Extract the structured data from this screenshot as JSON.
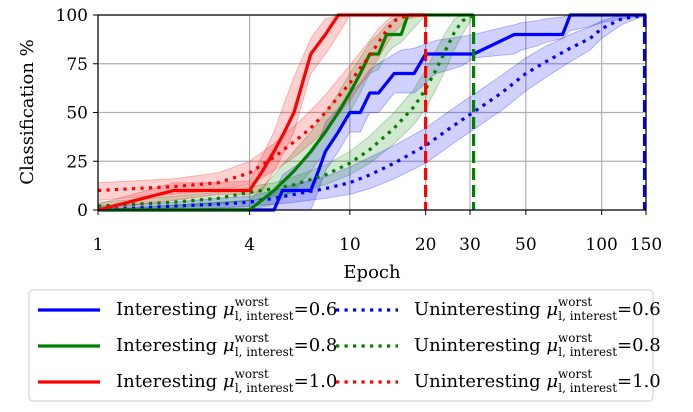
{
  "chart_data": {
    "type": "line",
    "xlabel": "Epoch",
    "ylabel": "Classification %",
    "xscale": "log",
    "xlim": [
      1,
      150
    ],
    "ylim": [
      0,
      100
    ],
    "grid": true,
    "legend_position": "below",
    "x_ticks": [
      1,
      4,
      10,
      20,
      30,
      50,
      100,
      150
    ],
    "x_tick_labels": [
      "1",
      "4",
      "10",
      "20",
      "30",
      "50",
      "100",
      "150"
    ],
    "y_ticks": [
      0,
      25,
      50,
      75,
      100
    ],
    "y_tick_labels": [
      "0",
      "25",
      "50",
      "75",
      "100"
    ],
    "colors": {
      "blue": "#0000ff",
      "green": "#008000",
      "red": "#ff0000"
    },
    "series": [
      {
        "name": "Interesting μ^worst_l,interest = 0.6",
        "legend_main": "Interesting",
        "legend_value": "0.6",
        "color": "blue",
        "style": "solid",
        "x": [
          1,
          4.2,
          5,
          5.4,
          6,
          6.5,
          7,
          7.5,
          8,
          9,
          10,
          11,
          12,
          13,
          15,
          16,
          18,
          20,
          21,
          22,
          25,
          28,
          31,
          45,
          48,
          55,
          60,
          70,
          75,
          90,
          100,
          120,
          150
        ],
        "y": [
          0,
          0,
          0,
          10,
          10,
          10,
          10,
          20,
          30,
          40,
          50,
          50,
          60,
          60,
          70,
          70,
          70,
          80,
          80,
          80,
          80,
          80,
          80,
          90,
          90,
          90,
          90,
          90,
          100,
          100,
          100,
          100,
          100
        ],
        "band_lower": [
          0,
          0,
          0,
          0,
          0,
          0,
          0,
          10,
          20,
          30,
          40,
          40,
          50,
          50,
          60,
          60,
          60,
          65,
          68,
          70,
          72,
          74,
          78,
          80,
          82,
          84,
          86,
          88,
          92,
          94,
          96,
          98,
          100
        ],
        "band_upper": [
          0,
          5,
          8,
          18,
          22,
          25,
          28,
          35,
          45,
          52,
          60,
          65,
          72,
          75,
          80,
          82,
          83,
          85,
          86,
          87,
          88,
          89,
          90,
          95,
          96,
          97,
          98,
          99,
          100,
          100,
          100,
          100,
          100
        ]
      },
      {
        "name": "Uninteresting μ^worst_l,interest = 0.6",
        "legend_main": "Uninteresting",
        "legend_value": "0.6",
        "color": "blue",
        "style": "dotted",
        "x": [
          1,
          2,
          3,
          4,
          5,
          6,
          8,
          10,
          12,
          15,
          20,
          25,
          30,
          40,
          50,
          60,
          75,
          90,
          100,
          120,
          150
        ],
        "y": [
          0,
          2,
          3,
          4,
          6,
          8,
          11,
          14,
          18,
          24,
          33,
          42,
          49,
          60,
          70,
          76,
          83,
          88,
          93,
          98,
          100
        ],
        "band_lower": [
          0,
          0,
          1,
          2,
          3,
          4,
          6,
          8,
          11,
          16,
          24,
          33,
          40,
          51,
          61,
          68,
          76,
          82,
          88,
          95,
          100
        ],
        "band_upper": [
          2,
          4,
          6,
          7,
          10,
          13,
          17,
          22,
          27,
          33,
          42,
          51,
          58,
          69,
          78,
          84,
          90,
          94,
          97,
          100,
          100
        ]
      },
      {
        "name": "Interesting μ^worst_l,interest = 0.8",
        "legend_main": "Interesting",
        "legend_value": "0.8",
        "color": "green",
        "style": "solid",
        "x": [
          1,
          4,
          5,
          6,
          7,
          8,
          9,
          10,
          11,
          12,
          13,
          14,
          15,
          16,
          17,
          20,
          25,
          31
        ],
        "y": [
          0,
          0,
          10,
          20,
          30,
          40,
          50,
          60,
          70,
          80,
          80,
          90,
          90,
          90,
          100,
          100,
          100,
          100
        ],
        "band_lower": [
          0,
          0,
          3,
          10,
          20,
          30,
          40,
          50,
          60,
          70,
          72,
          80,
          84,
          86,
          90,
          100,
          100,
          100
        ],
        "band_upper": [
          0,
          5,
          18,
          30,
          40,
          50,
          60,
          70,
          78,
          86,
          90,
          95,
          98,
          100,
          100,
          100,
          100,
          100
        ]
      },
      {
        "name": "Uninteresting μ^worst_l,interest = 0.8",
        "legend_main": "Uninteresting",
        "legend_value": "0.8",
        "color": "green",
        "style": "dotted",
        "x": [
          1,
          2,
          3,
          4,
          5,
          6,
          8,
          10,
          12,
          15,
          18,
          20,
          22,
          24,
          26,
          28,
          31
        ],
        "y": [
          2,
          4,
          6,
          9,
          11,
          13,
          18,
          24,
          31,
          42,
          53,
          62,
          72,
          82,
          91,
          97,
          100
        ],
        "band_lower": [
          0,
          1,
          3,
          5,
          7,
          9,
          13,
          18,
          24,
          34,
          44,
          52,
          62,
          72,
          82,
          90,
          100
        ],
        "band_upper": [
          4,
          7,
          9,
          12,
          14,
          17,
          23,
          30,
          38,
          50,
          62,
          72,
          82,
          91,
          98,
          100,
          100
        ]
      },
      {
        "name": "Interesting μ^worst_l,interest = 1.0",
        "legend_main": "Interesting",
        "legend_value": "1.0",
        "color": "red",
        "style": "solid",
        "x": [
          1,
          2,
          3,
          4,
          4.5,
          5,
          5.5,
          6,
          7,
          8,
          9,
          10,
          12,
          15,
          20
        ],
        "y": [
          0,
          10,
          10,
          10,
          20,
          30,
          40,
          50,
          80,
          90,
          100,
          100,
          100,
          100,
          100
        ],
        "band_lower": [
          0,
          5,
          8,
          8,
          10,
          20,
          30,
          40,
          70,
          80,
          90,
          100,
          100,
          100,
          100
        ],
        "band_upper": [
          3,
          14,
          14,
          15,
          28,
          40,
          55,
          68,
          88,
          98,
          100,
          100,
          100,
          100,
          100
        ]
      },
      {
        "name": "Uninteresting μ^worst_l,interest = 1.0",
        "legend_main": "Uninteresting",
        "legend_value": "1.0",
        "color": "red",
        "style": "dotted",
        "x": [
          1,
          2,
          3,
          4,
          5,
          6,
          7,
          8,
          9,
          10,
          11,
          12,
          13,
          14,
          15,
          17,
          20
        ],
        "y": [
          10,
          12,
          14,
          19,
          27,
          35,
          42,
          50,
          58,
          65,
          73,
          79,
          86,
          92,
          97,
          100,
          100
        ],
        "band_lower": [
          5,
          8,
          10,
          13,
          20,
          27,
          34,
          41,
          49,
          56,
          64,
          70,
          78,
          85,
          91,
          98,
          100
        ],
        "band_upper": [
          14,
          16,
          19,
          25,
          34,
          43,
          51,
          59,
          67,
          74,
          81,
          87,
          93,
          97,
          100,
          100,
          100
        ]
      }
    ],
    "vertical_lines": [
      {
        "x": 20,
        "color": "red",
        "style": "dashed"
      },
      {
        "x": 31,
        "color": "green",
        "style": "dashed"
      },
      {
        "x": 148,
        "color": "blue",
        "style": "dashed"
      }
    ],
    "legend": {
      "subscript": "l, interest",
      "superscript": "worst",
      "symbol": "μ",
      "equals": "=",
      "order": [
        0,
        1,
        2,
        3,
        4,
        5
      ]
    }
  }
}
